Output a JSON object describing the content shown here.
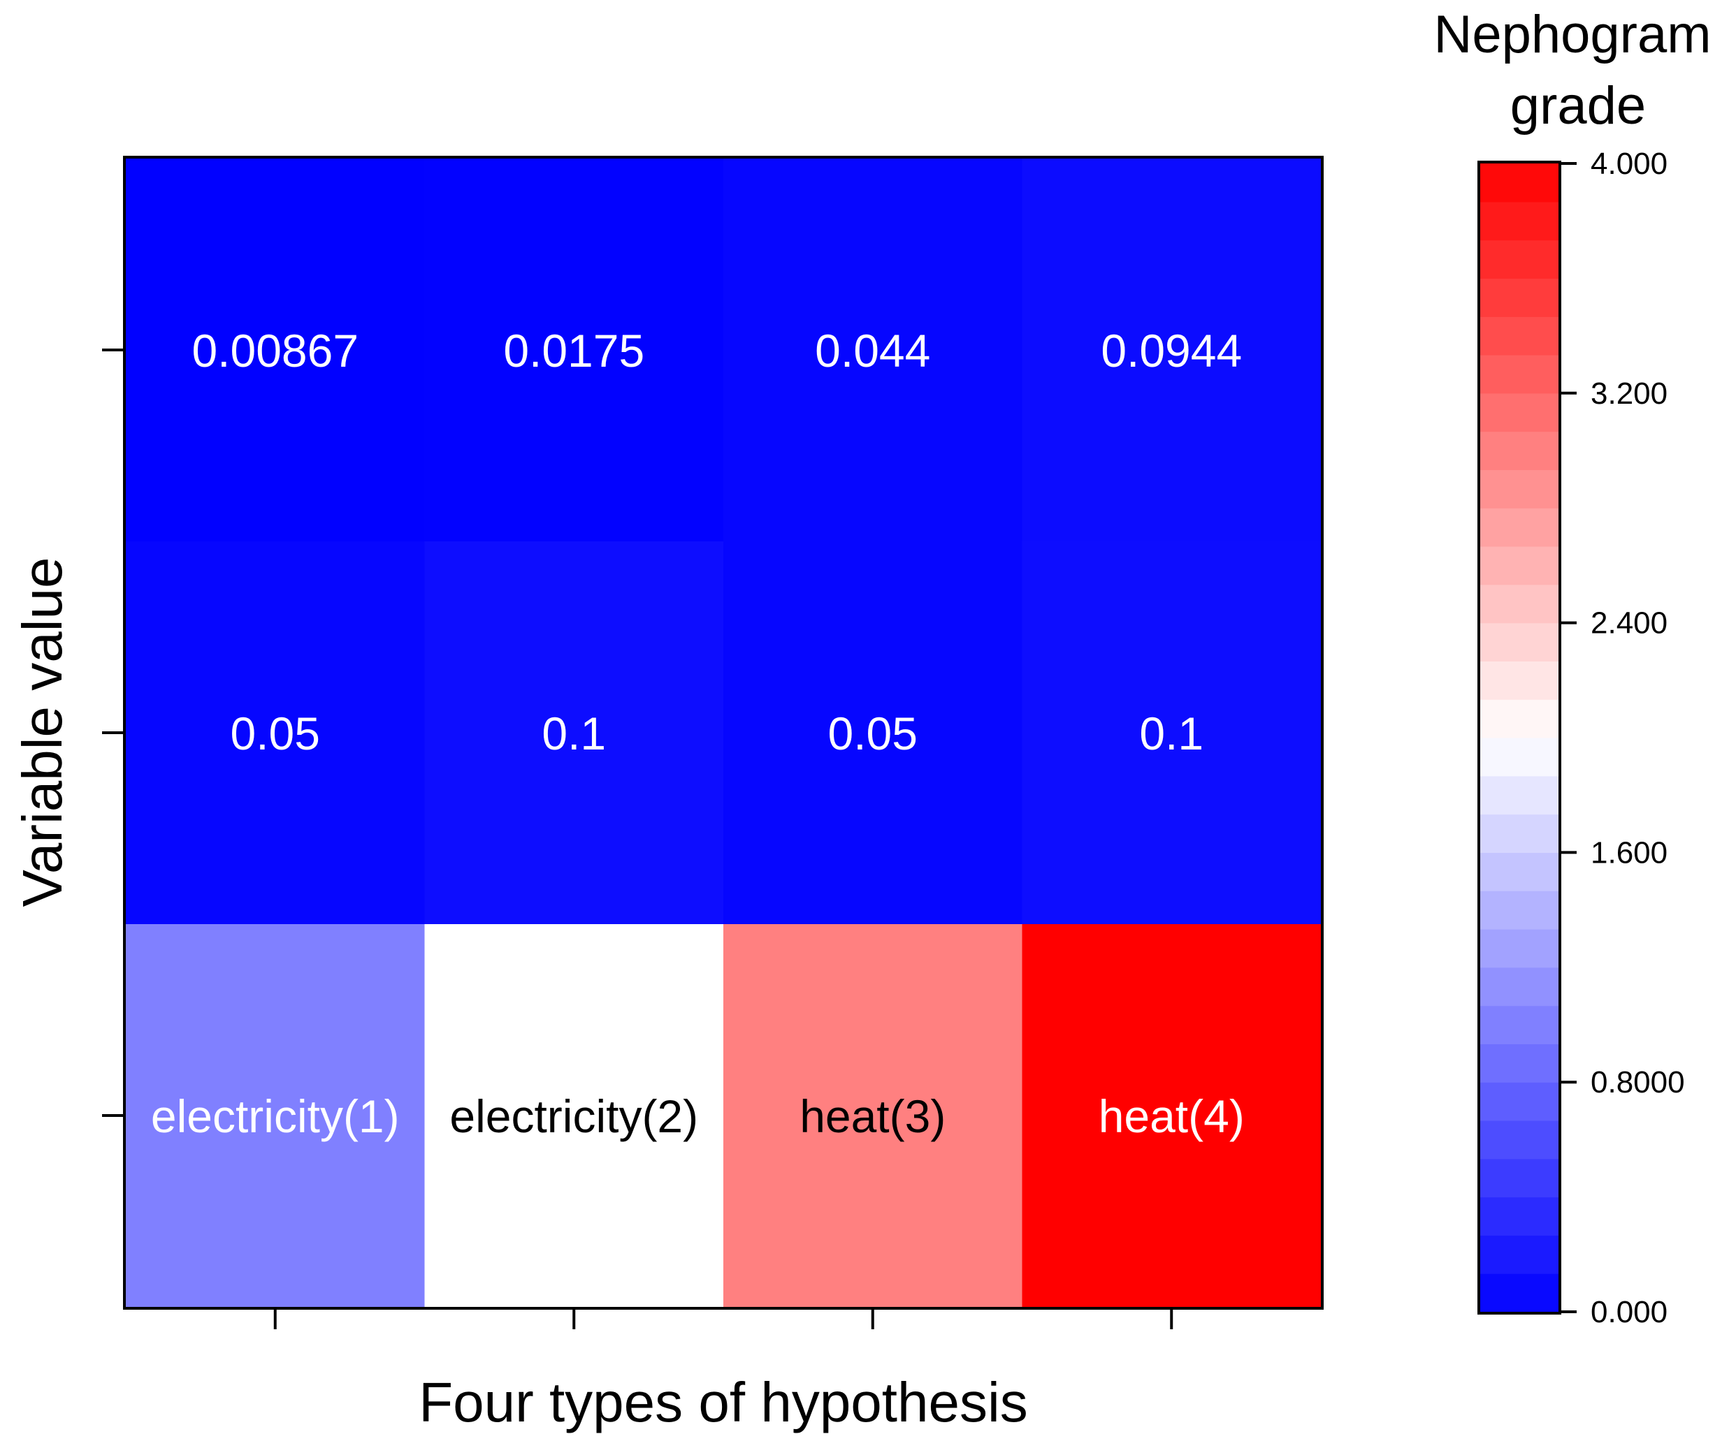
{
  "chart_data": {
    "type": "heatmap",
    "xlabel": "Four types of hypothesis",
    "ylabel": "Variable value",
    "rows": [
      {
        "cells": [
          {
            "label": "0.00867",
            "value": 0.00867
          },
          {
            "label": "0.0175",
            "value": 0.0175
          },
          {
            "label": "0.044",
            "value": 0.044
          },
          {
            "label": "0.0944",
            "value": 0.0944
          }
        ]
      },
      {
        "cells": [
          {
            "label": "0.05",
            "value": 0.05
          },
          {
            "label": "0.1",
            "value": 0.1
          },
          {
            "label": "0.05",
            "value": 0.05
          },
          {
            "label": "0.1",
            "value": 0.1
          }
        ]
      },
      {
        "cells": [
          {
            "label": "electricity(1)",
            "value": 1
          },
          {
            "label": "electricity(2)",
            "value": 2
          },
          {
            "label": "heat(3)",
            "value": 3
          },
          {
            "label": "heat(4)",
            "value": 4
          }
        ]
      }
    ],
    "colorbar": {
      "title_lines": [
        "Nephogram",
        "grade"
      ],
      "range": [
        0,
        4
      ],
      "levels": 30,
      "tick_values": [
        0,
        0.8,
        1.6,
        2.4,
        3.2,
        4.0
      ],
      "tick_labels": [
        "0.000",
        "0.8000",
        "1.600",
        "2.400",
        "3.200",
        "4.000"
      ],
      "color_low": "#0000ff",
      "color_mid": "#ffffff",
      "color_high": "#ff0000"
    }
  }
}
